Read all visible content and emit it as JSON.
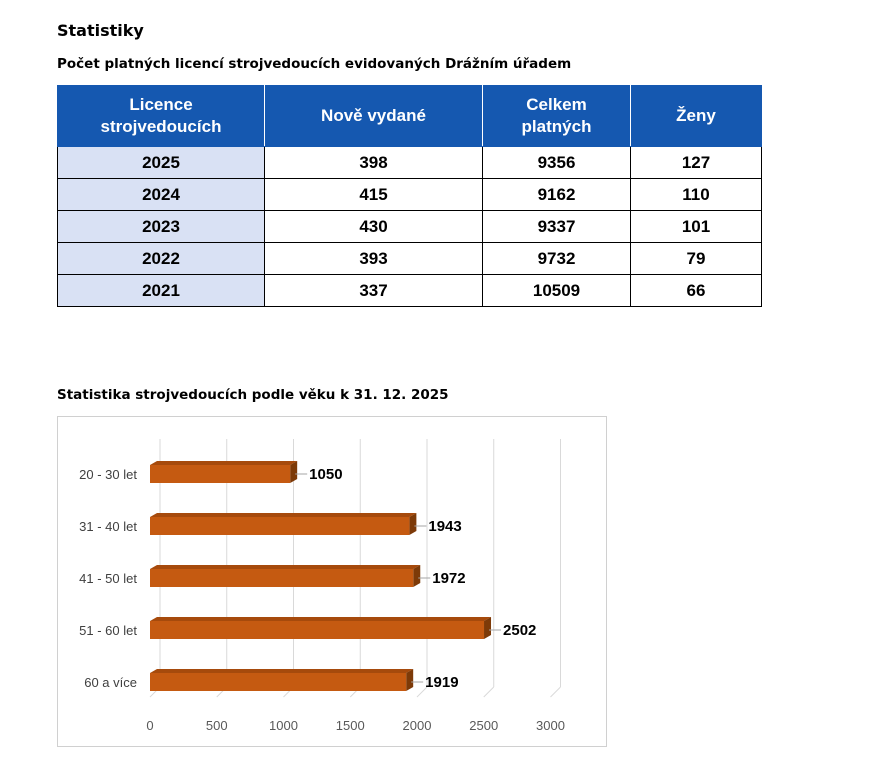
{
  "page": {
    "title": "Statistiky",
    "table_title": "Počet platných licencí strojvedoucích evidovaných Drážním úřadem",
    "chart_title": "Statistika strojvedoucích podle věku k 31. 12. 2025"
  },
  "license_table": {
    "headers": [
      "Licence strojvedoucích",
      "Nově vydané",
      "Celkem platných",
      "Ženy"
    ],
    "rows": [
      [
        "2025",
        "398",
        "9356",
        "127"
      ],
      [
        "2024",
        "415",
        "9162",
        "110"
      ],
      [
        "2023",
        "430",
        "9337",
        "101"
      ],
      [
        "2022",
        "393",
        "9732",
        "79"
      ],
      [
        "2021",
        "337",
        "10509",
        "66"
      ]
    ]
  },
  "colors": {
    "header_bg": "#1558b0",
    "year_cell_bg": "#d9e1f4",
    "bar_front": "#c55a11",
    "bar_top": "#a64a0c",
    "bar_side": "#7d3a08"
  },
  "chart_data": {
    "type": "bar",
    "orientation": "horizontal",
    "title": "Statistika strojvedoucích podle věku k 31. 12. 2025",
    "categories": [
      "20 - 30 let",
      "31 - 40 let",
      "41 - 50 let",
      "51 - 60 let",
      "60 a více"
    ],
    "values": [
      1050,
      1943,
      1972,
      2502,
      1919
    ],
    "xlim": [
      0,
      3000
    ],
    "xticks": [
      0,
      500,
      1000,
      1500,
      2000,
      2500,
      3000
    ],
    "grid": true,
    "legend": "none",
    "xlabel": "",
    "ylabel": ""
  }
}
